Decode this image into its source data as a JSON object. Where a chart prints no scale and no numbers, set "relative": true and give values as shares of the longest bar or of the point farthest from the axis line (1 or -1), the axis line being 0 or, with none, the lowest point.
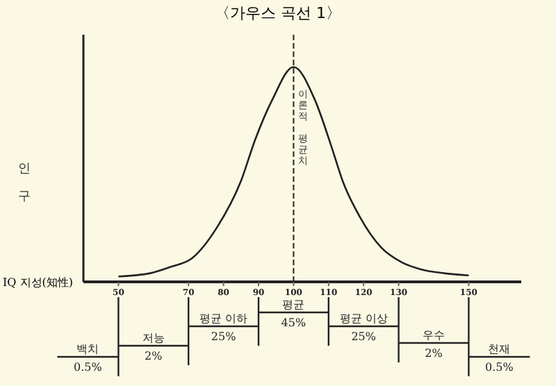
{
  "chart_data": {
    "type": "line",
    "title": "〈가우스 곡선 1〉",
    "xlabel": "IQ 지성(知性)",
    "ylabel": "인구",
    "relative": true,
    "color": "#222222",
    "marker": "none",
    "x": [
      50,
      59,
      65,
      71,
      78,
      85,
      89,
      94,
      100,
      106,
      111,
      114,
      119,
      125,
      131,
      136,
      143,
      150
    ],
    "values": [
      0.025,
      0.04,
      0.07,
      0.11,
      0.25,
      0.47,
      0.66,
      0.85,
      1,
      0.85,
      0.62,
      0.47,
      0.3,
      0.16,
      0.09,
      0.06,
      0.04,
      0.03
    ],
    "xlim": [
      40,
      165
    ],
    "xticks": [
      50,
      70,
      80,
      90,
      100,
      110,
      120,
      130,
      150
    ],
    "ref_lines": [
      {
        "axis": "x",
        "value": 100,
        "label": "이론적 평균치",
        "line_style": "dashed"
      }
    ],
    "annotations": [
      "백치",
      "0.5%",
      "저능",
      "2%",
      "평균 이하",
      "25%",
      "평균",
      "45%",
      "평균 이상",
      "25%",
      "우수",
      "2%",
      "천재",
      "0.5%"
    ]
  }
}
